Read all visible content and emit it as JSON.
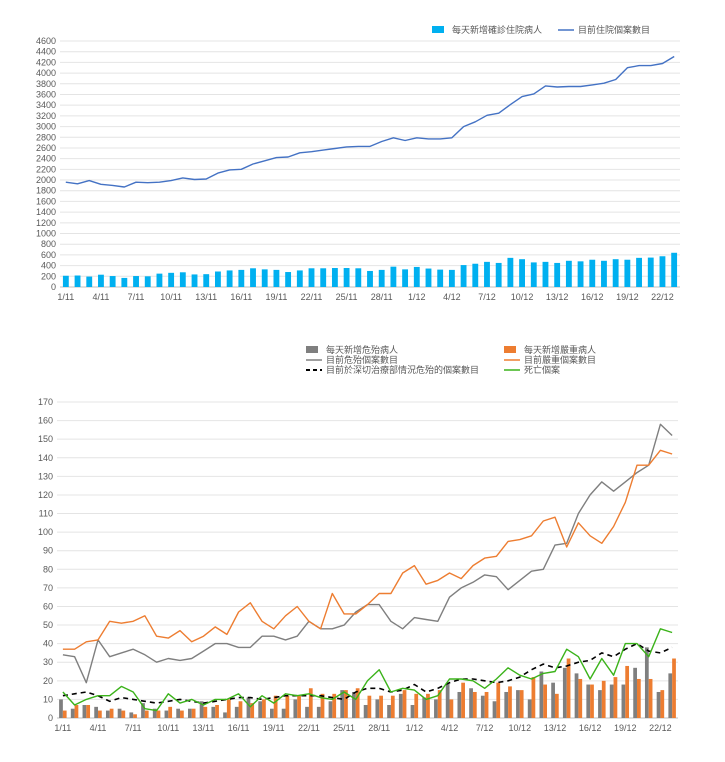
{
  "chart_data": [
    {
      "type": "bar+line",
      "x": [
        "1/11",
        "2/11",
        "3/11",
        "4/11",
        "5/11",
        "6/11",
        "7/11",
        "8/11",
        "9/11",
        "10/11",
        "11/11",
        "12/11",
        "13/11",
        "14/11",
        "15/11",
        "16/11",
        "17/11",
        "18/11",
        "19/11",
        "20/11",
        "21/11",
        "22/11",
        "23/11",
        "24/11",
        "25/11",
        "26/11",
        "27/11",
        "28/11",
        "29/11",
        "30/11",
        "1/12",
        "2/12",
        "3/12",
        "4/12",
        "5/12",
        "6/12",
        "7/12",
        "8/12",
        "9/12",
        "10/12",
        "11/12",
        "12/12",
        "13/12",
        "14/12",
        "15/12",
        "16/12",
        "17/12",
        "18/12",
        "19/12",
        "20/12",
        "21/12",
        "22/12",
        "23/12"
      ],
      "x_tick_labels": [
        "1/11",
        "4/11",
        "7/11",
        "10/11",
        "13/11",
        "16/11",
        "19/11",
        "22/11",
        "25/11",
        "28/11",
        "1/12",
        "4/12",
        "7/12",
        "10/12",
        "13/12",
        "16/12",
        "19/12",
        "22/12"
      ],
      "ylim": [
        0,
        4600
      ],
      "y_ticks": [
        0,
        200,
        400,
        600,
        800,
        1000,
        1200,
        1400,
        1600,
        1800,
        2000,
        2200,
        2400,
        2600,
        2800,
        3000,
        3200,
        3400,
        3600,
        3800,
        4000,
        4200,
        4400,
        4600
      ],
      "legend": "top-right",
      "grid": true,
      "series": [
        {
          "name": "每天新增確診住院病人",
          "kind": "bar",
          "color": "#00b0f0",
          "values": [
            210,
            215,
            195,
            230,
            205,
            170,
            205,
            200,
            250,
            265,
            275,
            235,
            240,
            290,
            310,
            320,
            350,
            330,
            320,
            280,
            310,
            350,
            350,
            355,
            355,
            350,
            300,
            320,
            380,
            330,
            375,
            345,
            325,
            320,
            410,
            435,
            470,
            450,
            545,
            520,
            460,
            470,
            450,
            490,
            480,
            510,
            490,
            520,
            510,
            545,
            550,
            575,
            640
          ]
        },
        {
          "name": "目前住院個案數目",
          "kind": "line",
          "color": "#4472c4",
          "values": [
            1960,
            1930,
            1990,
            1920,
            1900,
            1870,
            1960,
            1950,
            1960,
            1990,
            2040,
            2010,
            2020,
            2130,
            2190,
            2200,
            2300,
            2360,
            2420,
            2430,
            2510,
            2530,
            2560,
            2590,
            2620,
            2630,
            2630,
            2720,
            2790,
            2740,
            2790,
            2770,
            2770,
            2790,
            3000,
            3090,
            3210,
            3250,
            3410,
            3560,
            3610,
            3760,
            3740,
            3750,
            3750,
            3780,
            3810,
            3880,
            4100,
            4140,
            4140,
            4180,
            4310
          ]
        }
      ]
    },
    {
      "type": "bar+line",
      "x": [
        "1/11",
        "2/11",
        "3/11",
        "4/11",
        "5/11",
        "6/11",
        "7/11",
        "8/11",
        "9/11",
        "10/11",
        "11/11",
        "12/11",
        "13/11",
        "14/11",
        "15/11",
        "16/11",
        "17/11",
        "18/11",
        "19/11",
        "20/11",
        "21/11",
        "22/11",
        "23/11",
        "24/11",
        "25/11",
        "26/11",
        "27/11",
        "28/11",
        "29/11",
        "30/11",
        "1/12",
        "2/12",
        "3/12",
        "4/12",
        "5/12",
        "6/12",
        "7/12",
        "8/12",
        "9/12",
        "10/12",
        "11/12",
        "12/12",
        "13/12",
        "14/12",
        "15/12",
        "16/12",
        "17/12",
        "18/12",
        "19/12",
        "20/12",
        "21/12",
        "22/12",
        "23/12"
      ],
      "x_tick_labels": [
        "1/11",
        "4/11",
        "7/11",
        "10/11",
        "13/11",
        "16/11",
        "19/11",
        "22/11",
        "25/11",
        "28/11",
        "1/12",
        "4/12",
        "7/12",
        "10/12",
        "13/12",
        "16/12",
        "19/12",
        "22/12"
      ],
      "ylim": [
        0,
        170
      ],
      "y_ticks": [
        0,
        10,
        20,
        30,
        40,
        50,
        60,
        70,
        80,
        90,
        100,
        110,
        120,
        130,
        140,
        150,
        160,
        170
      ],
      "legend": "top",
      "grid": true,
      "series": [
        {
          "name": "每天新增危殆病人",
          "kind": "bar",
          "color": "#7f7f7f",
          "values": [
            10,
            5,
            7,
            6,
            4,
            5,
            3,
            8,
            5,
            4,
            5,
            5,
            9,
            6,
            3,
            6,
            11,
            9,
            5,
            5,
            10,
            6,
            6,
            9,
            15,
            14,
            7,
            10,
            7,
            13,
            7,
            11,
            10,
            19,
            14,
            16,
            12,
            9,
            14,
            15,
            10,
            25,
            19,
            27,
            24,
            18,
            15,
            18,
            18,
            27,
            38,
            14,
            24
          ]
        },
        {
          "name": "每天新增嚴重病人",
          "kind": "bar",
          "color": "#ed7d31",
          "values": [
            4,
            7,
            7,
            4,
            5,
            4,
            2,
            4,
            4,
            6,
            4,
            5,
            6,
            7,
            10,
            9,
            8,
            10,
            12,
            12,
            12,
            16,
            13,
            13,
            15,
            16,
            12,
            12,
            12,
            15,
            13,
            13,
            15,
            10,
            19,
            14,
            14,
            19,
            17,
            15,
            22,
            18,
            13,
            32,
            21,
            18,
            20,
            22,
            28,
            21,
            21,
            15,
            32
          ]
        },
        {
          "name": "目前危殆個案數目",
          "kind": "line",
          "color": "#7f7f7f",
          "values": [
            34,
            33,
            19,
            42,
            33,
            35,
            37,
            34,
            30,
            32,
            31,
            32,
            36,
            40,
            40,
            38,
            38,
            44,
            44,
            42,
            44,
            52,
            48,
            48,
            50,
            57,
            61,
            61,
            52,
            48,
            54,
            53,
            52,
            65,
            70,
            73,
            77,
            76,
            69,
            74,
            79,
            80,
            93,
            94,
            110,
            120,
            127,
            122,
            127,
            132,
            136,
            158,
            152
          ]
        },
        {
          "name": "目前嚴重個案數目",
          "kind": "line",
          "color": "#ed7d31",
          "values": [
            37,
            37,
            41,
            42,
            52,
            51,
            52,
            55,
            44,
            43,
            47,
            41,
            44,
            49,
            45,
            57,
            62,
            52,
            48,
            55,
            60,
            52,
            48,
            67,
            56,
            56,
            61,
            67,
            67,
            78,
            82,
            72,
            74,
            78,
            75,
            82,
            86,
            87,
            95,
            96,
            98,
            106,
            108,
            92,
            105,
            98,
            94,
            103,
            116,
            136,
            136,
            144,
            142
          ]
        },
        {
          "name": "目前於深切治療部情況危殆的個案數目",
          "kind": "line",
          "dashed": true,
          "color": "#000000",
          "values": [
            12,
            13,
            14,
            12,
            9,
            11,
            10,
            9,
            8,
            9,
            10,
            9,
            8,
            9,
            10,
            11,
            11,
            10,
            11,
            12,
            12,
            12,
            12,
            11,
            10,
            14,
            16,
            16,
            14,
            15,
            18,
            14,
            16,
            19,
            21,
            21,
            20,
            19,
            20,
            22,
            26,
            29,
            27,
            28,
            30,
            31,
            35,
            33,
            37,
            40,
            36,
            35,
            38
          ]
        },
        {
          "name": "死亡個案",
          "kind": "line",
          "color": "#3bb31a",
          "values": [
            14,
            7,
            10,
            12,
            12,
            17,
            14,
            5,
            4,
            13,
            8,
            10,
            7,
            10,
            10,
            13,
            6,
            12,
            8,
            13,
            12,
            13,
            11,
            10,
            14,
            10,
            20,
            26,
            14,
            16,
            15,
            10,
            12,
            21,
            21,
            20,
            16,
            21,
            27,
            23,
            21,
            24,
            25,
            37,
            33,
            21,
            32,
            23,
            40,
            40,
            33,
            48,
            46
          ]
        }
      ]
    }
  ]
}
